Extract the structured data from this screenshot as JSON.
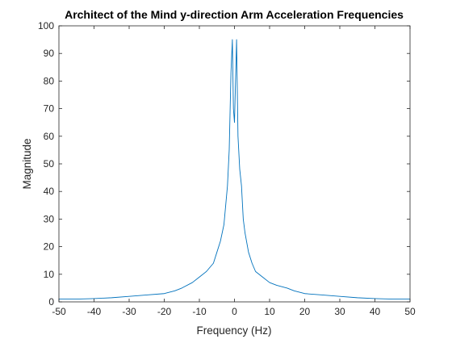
{
  "chart_data": {
    "type": "line",
    "title": "Architect of the Mind y-direction Arm Acceleration Frequencies",
    "xlabel": "Frequency (Hz)",
    "ylabel": "Magnitude",
    "xlim": [
      -50,
      50
    ],
    "ylim": [
      0,
      100
    ],
    "xticks": [
      -50,
      -40,
      -30,
      -20,
      -10,
      0,
      10,
      20,
      30,
      40,
      50
    ],
    "yticks": [
      0,
      10,
      20,
      30,
      40,
      50,
      60,
      70,
      80,
      90,
      100
    ],
    "grid": false,
    "line_color": "#0072BD",
    "series": [
      {
        "x": [
          -50,
          -45,
          -40,
          -35,
          -30,
          -25,
          -20,
          -17,
          -15,
          -12,
          -10,
          -8,
          -6,
          -5,
          -4,
          -3,
          -2.5,
          -2,
          -1.5,
          -1,
          -0.6,
          -0.3,
          0,
          0.3,
          0.6,
          1,
          1.5,
          2,
          2.5,
          3,
          4,
          5,
          6,
          8,
          10,
          12,
          15,
          17,
          20,
          25,
          30,
          35,
          40,
          45,
          50
        ],
        "y": [
          1,
          1,
          1.2,
          1.5,
          2,
          2.5,
          3,
          4,
          5,
          7,
          9,
          11,
          14,
          18,
          22,
          28,
          35,
          42,
          55,
          83,
          95,
          70,
          65,
          80,
          95,
          60,
          48,
          42,
          30,
          25,
          18,
          14,
          11,
          9,
          7,
          6,
          5,
          4,
          3,
          2.5,
          2,
          1.5,
          1.2,
          1,
          1
        ]
      }
    ]
  }
}
